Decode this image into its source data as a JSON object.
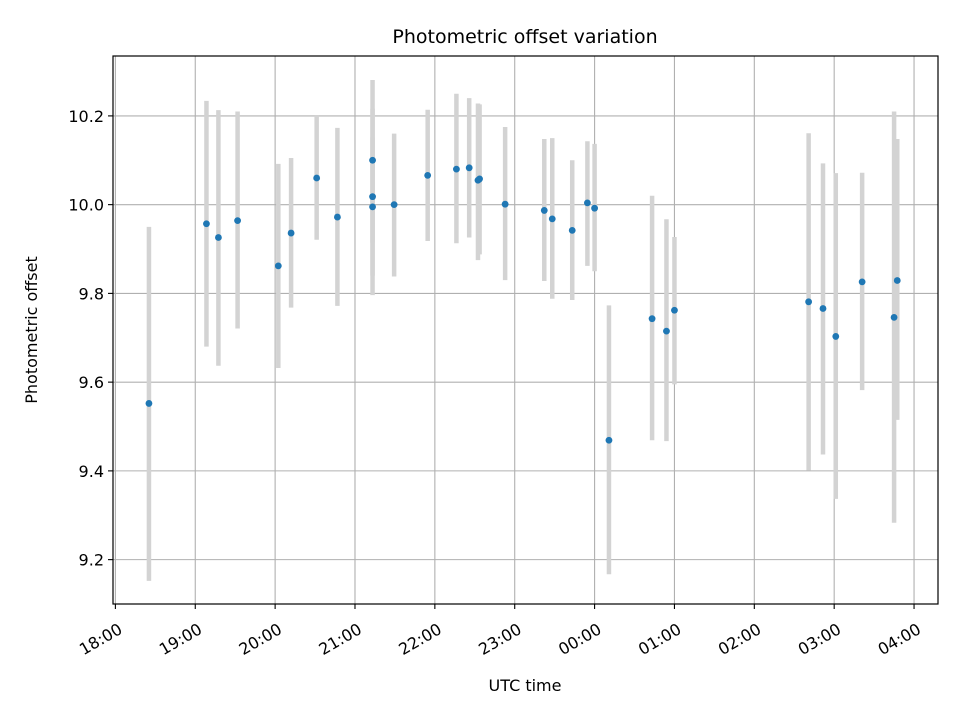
{
  "chart_data": {
    "type": "scatter",
    "title": "Photometric offset variation",
    "xlabel": "UTC time",
    "ylabel": "Photometric offset",
    "x_unit": "hours (continuous, 24 = 00:00 next day)",
    "xlim": [
      17.97,
      28.3
    ],
    "ylim": [
      9.1,
      10.335
    ],
    "grid": true,
    "xticks": [
      18,
      19,
      20,
      21,
      22,
      23,
      24,
      25,
      26,
      27,
      28
    ],
    "xtick_labels": [
      "18:00",
      "19:00",
      "20:00",
      "21:00",
      "22:00",
      "23:00",
      "00:00",
      "01:00",
      "02:00",
      "03:00",
      "04:00"
    ],
    "yticks": [
      9.2,
      9.4,
      9.6,
      9.8,
      10.0,
      10.2
    ],
    "ytick_labels": [
      "9.2",
      "9.4",
      "9.6",
      "9.8",
      "10.0",
      "10.2"
    ],
    "colors": {
      "point": "#1f77b4",
      "errorbar": "#d3d3d3",
      "grid": "#b0b0b0"
    },
    "series": [
      {
        "x": [
          18.42,
          19.14,
          19.29,
          19.53,
          20.04,
          20.2,
          20.52,
          20.78,
          21.22,
          21.22,
          21.22,
          21.49,
          21.91,
          22.27,
          22.43,
          22.54,
          22.56,
          22.88,
          23.37,
          23.47,
          23.72,
          23.91,
          24.0,
          24.18,
          24.72,
          24.9,
          25.0,
          26.68,
          26.86,
          27.02,
          27.35,
          27.75,
          27.79
        ],
        "y": [
          9.552,
          9.957,
          9.926,
          9.964,
          9.862,
          9.936,
          10.06,
          9.972,
          10.1,
          10.018,
          9.995,
          10.0,
          10.066,
          10.08,
          10.083,
          10.055,
          10.058,
          10.001,
          9.987,
          9.968,
          9.942,
          10.004,
          9.992,
          9.469,
          9.743,
          9.715,
          9.762,
          9.781,
          9.766,
          9.703,
          9.826,
          9.746,
          9.829
        ],
        "ylow": [
          9.152,
          9.68,
          9.637,
          9.721,
          9.632,
          9.768,
          9.921,
          9.772,
          9.914,
          9.796,
          9.84,
          9.838,
          9.918,
          9.913,
          9.926,
          9.875,
          9.888,
          9.83,
          9.828,
          9.788,
          9.785,
          9.862,
          9.85,
          9.167,
          9.469,
          9.467,
          9.595,
          9.401,
          9.437,
          9.337,
          9.582,
          9.283,
          9.515
        ],
        "yhigh": [
          9.95,
          10.234,
          10.213,
          10.21,
          10.092,
          10.105,
          10.2,
          10.173,
          10.281,
          10.216,
          10.152,
          10.16,
          10.214,
          10.25,
          10.24,
          10.228,
          10.226,
          10.175,
          10.148,
          10.15,
          10.1,
          10.143,
          10.137,
          9.773,
          10.02,
          9.967,
          9.927,
          10.161,
          10.093,
          10.071,
          10.072,
          10.21,
          10.148
        ]
      }
    ]
  }
}
